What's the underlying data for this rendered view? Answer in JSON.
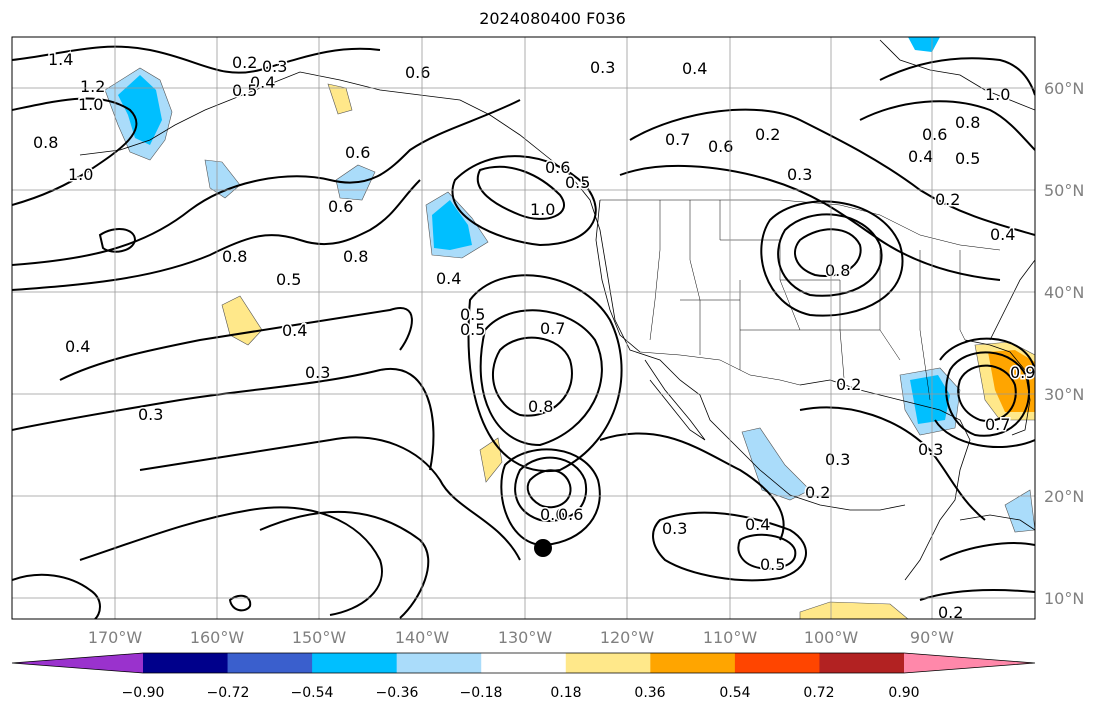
{
  "title": "2024080400 F036",
  "map": {
    "lon_labels": [
      "170°W",
      "160°W",
      "150°W",
      "140°W",
      "130°W",
      "120°W",
      "110°W",
      "100°W",
      "90°W"
    ],
    "lat_labels": [
      "60°N",
      "50°N",
      "40°N",
      "30°N",
      "20°N",
      "10°N"
    ],
    "contour_labels": [
      "1.4",
      "1.2",
      "1.0",
      "0.8",
      "1.0",
      "0.2",
      "0.3",
      "0.4",
      "0.5",
      "0.6",
      "0.3",
      "0.4",
      "0.6",
      "0.7",
      "0.6",
      "0.2",
      "0.3",
      "0.6",
      "0.5",
      "1.0",
      "0.8",
      "0.6",
      "0.5",
      "0.8",
      "0.4",
      "0.8",
      "0.5",
      "0.4",
      "0.3",
      "0.4",
      "0.3",
      "0.5",
      "0.7",
      "0.8",
      "0.6",
      "0.6",
      "0.3",
      "0.4",
      "0.5",
      "0.2",
      "0.3",
      "0.2",
      "0.3",
      "0.7",
      "0.9",
      "1.0",
      "0.8",
      "0.6",
      "0.4",
      "0.2",
      "0.4",
      "0.2",
      "0.5"
    ],
    "shading_colors": {
      "light_blue": "#aadcfa",
      "sky_blue": "#00bfff",
      "light_yellow": "#ffe88a",
      "orange": "#ffa500"
    }
  },
  "colorbar": {
    "tick_labels": [
      "−0.90",
      "−0.72",
      "−0.54",
      "−0.36",
      "−0.18",
      "0.18",
      "0.36",
      "0.54",
      "0.72",
      "0.90"
    ],
    "colors": [
      "#9a32cd",
      "#00008b",
      "#3a5fcd",
      "#00bfff",
      "#aadcfa",
      "#ffffff",
      "#ffe88a",
      "#ffa500",
      "#ff4500",
      "#b22222",
      "#ff88aa"
    ]
  }
}
